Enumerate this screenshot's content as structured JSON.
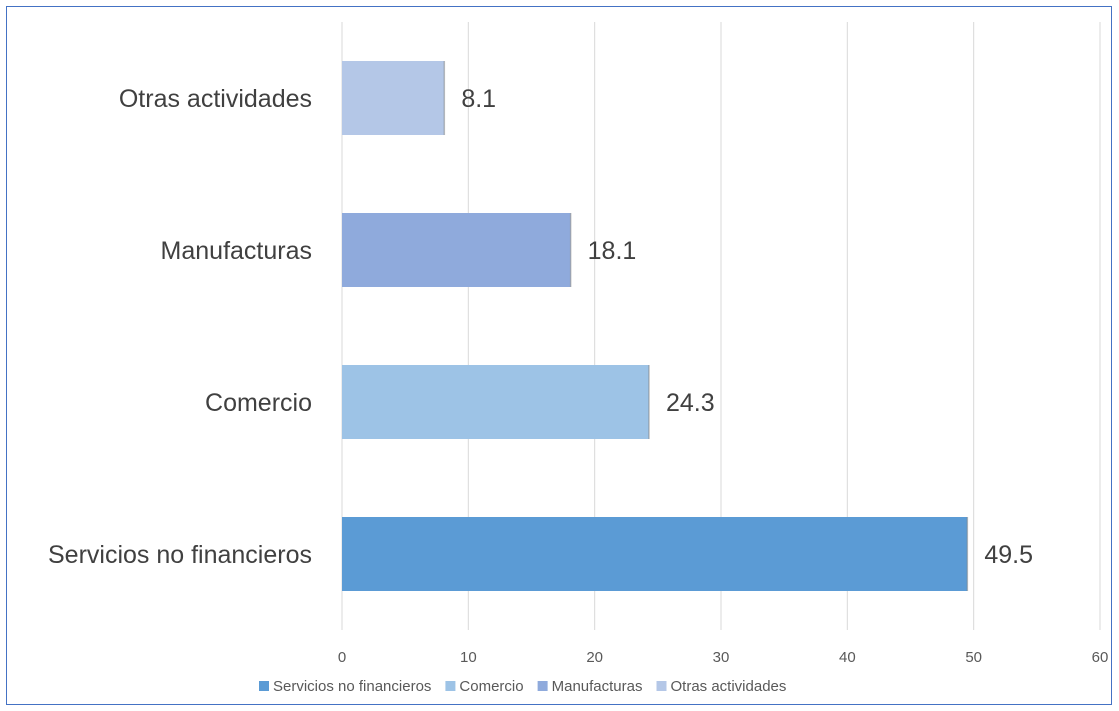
{
  "chart_data": {
    "type": "bar",
    "orientation": "horizontal",
    "categories": [
      "Servicios no financieros",
      "Comercio",
      "Manufacturas",
      "Otras actividades"
    ],
    "values": [
      49.5,
      24.3,
      18.1,
      8.1
    ],
    "data_labels": [
      "49.5",
      "24.3",
      "18.1",
      "8.1"
    ],
    "colors": [
      "#5B9BD5",
      "#9DC3E6",
      "#8FAADC",
      "#B4C7E7"
    ],
    "xlim": [
      0,
      60
    ],
    "x_ticks": [
      0,
      10,
      20,
      30,
      40,
      50,
      60
    ],
    "x_tick_labels": [
      "0",
      "10",
      "20",
      "30",
      "40",
      "50",
      "60"
    ],
    "grid": true,
    "legend": {
      "position": "bottom",
      "entries": [
        "Servicios no financieros",
        "Comercio",
        "Manufacturas",
        "Otras actividades"
      ]
    },
    "title": "",
    "xlabel": "",
    "ylabel": ""
  }
}
